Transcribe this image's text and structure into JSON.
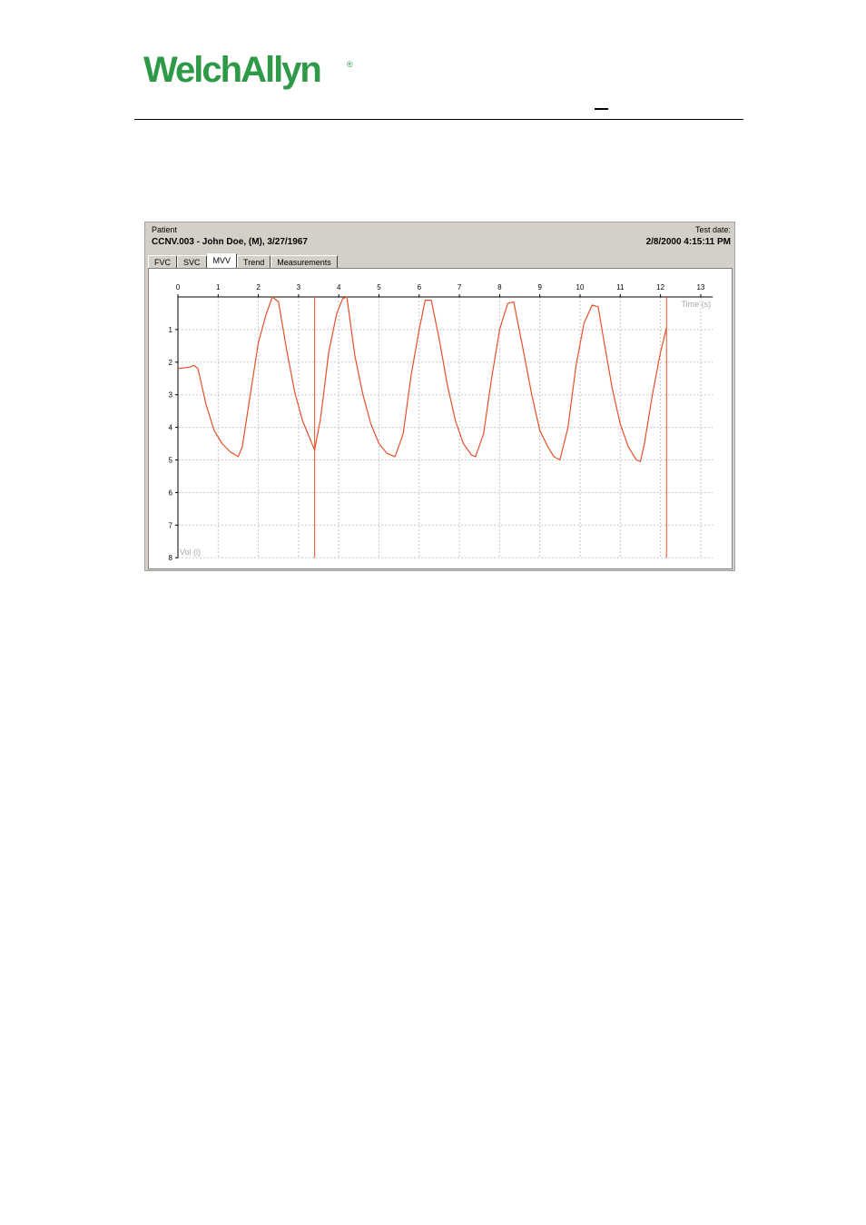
{
  "header": {
    "logo": {
      "text": "WelchAllyn",
      "registered": "®",
      "color": "#2e9a48"
    }
  },
  "window": {
    "patient_label": "Patient",
    "patient_value": "CCNV.003 - John Doe, (M), 3/27/1967",
    "testdate_label": "Test date:",
    "testdate_value": "2/8/2000 4:15:11 PM",
    "tabs": [
      {
        "label": "FVC",
        "active": false
      },
      {
        "label": "SVC",
        "active": false
      },
      {
        "label": "MVV",
        "active": true
      },
      {
        "label": "Trend",
        "active": false
      },
      {
        "label": "Measurements",
        "active": false
      }
    ]
  },
  "chart_data": {
    "type": "line",
    "xlabel": "Time (s)",
    "ylabel": "Vol (l)",
    "xlim": [
      0,
      13.3
    ],
    "ylim": [
      0,
      8
    ],
    "y_inverted": true,
    "x_ticks": [
      "0",
      "1",
      "2",
      "3",
      "4",
      "5",
      "6",
      "7",
      "8",
      "9",
      "10",
      "11",
      "12",
      "13"
    ],
    "y_ticks": [
      "1",
      "2",
      "3",
      "4",
      "5",
      "6",
      "7",
      "8"
    ],
    "grid": true,
    "series": [
      {
        "color": "#e8502a",
        "x": [
          0,
          0.3,
          0.4,
          0.5,
          0.7,
          0.9,
          1.1,
          1.3,
          1.5,
          1.6,
          1.8,
          2.0,
          2.2,
          2.35,
          2.5,
          2.7,
          2.9,
          3.1,
          3.3,
          3.4,
          3.55,
          3.75,
          3.95,
          4.1,
          4.2,
          4.4,
          4.6,
          4.8,
          5.0,
          5.2,
          5.4,
          5.6,
          5.8,
          6.0,
          6.15,
          6.3,
          6.5,
          6.7,
          6.9,
          7.1,
          7.3,
          7.4,
          7.6,
          7.8,
          8.0,
          8.2,
          8.35,
          8.55,
          8.8,
          9.0,
          9.2,
          9.35,
          9.5,
          9.7,
          9.9,
          10.1,
          10.3,
          10.45,
          10.6,
          10.8,
          11.0,
          11.2,
          11.4,
          11.5,
          11.6,
          11.8,
          12.0,
          12.15
        ],
        "y": [
          2.2,
          2.15,
          2.1,
          2.2,
          3.3,
          4.1,
          4.5,
          4.75,
          4.9,
          4.6,
          3.0,
          1.4,
          0.5,
          0.0,
          0.15,
          1.6,
          2.9,
          3.8,
          4.4,
          4.7,
          3.7,
          1.7,
          0.5,
          0.05,
          0.0,
          1.8,
          3.0,
          3.9,
          4.5,
          4.8,
          4.9,
          4.2,
          2.4,
          1.0,
          0.1,
          0.1,
          1.3,
          2.7,
          3.8,
          4.5,
          4.85,
          4.9,
          4.2,
          2.5,
          1.0,
          0.2,
          0.15,
          1.4,
          3.0,
          4.1,
          4.6,
          4.9,
          5.0,
          4.0,
          2.1,
          0.8,
          0.25,
          0.3,
          1.4,
          2.8,
          3.9,
          4.6,
          5.0,
          5.05,
          4.5,
          3.0,
          1.7,
          0.95
        ]
      }
    ],
    "cursor_lines_x": [
      3.4,
      12.15
    ]
  }
}
